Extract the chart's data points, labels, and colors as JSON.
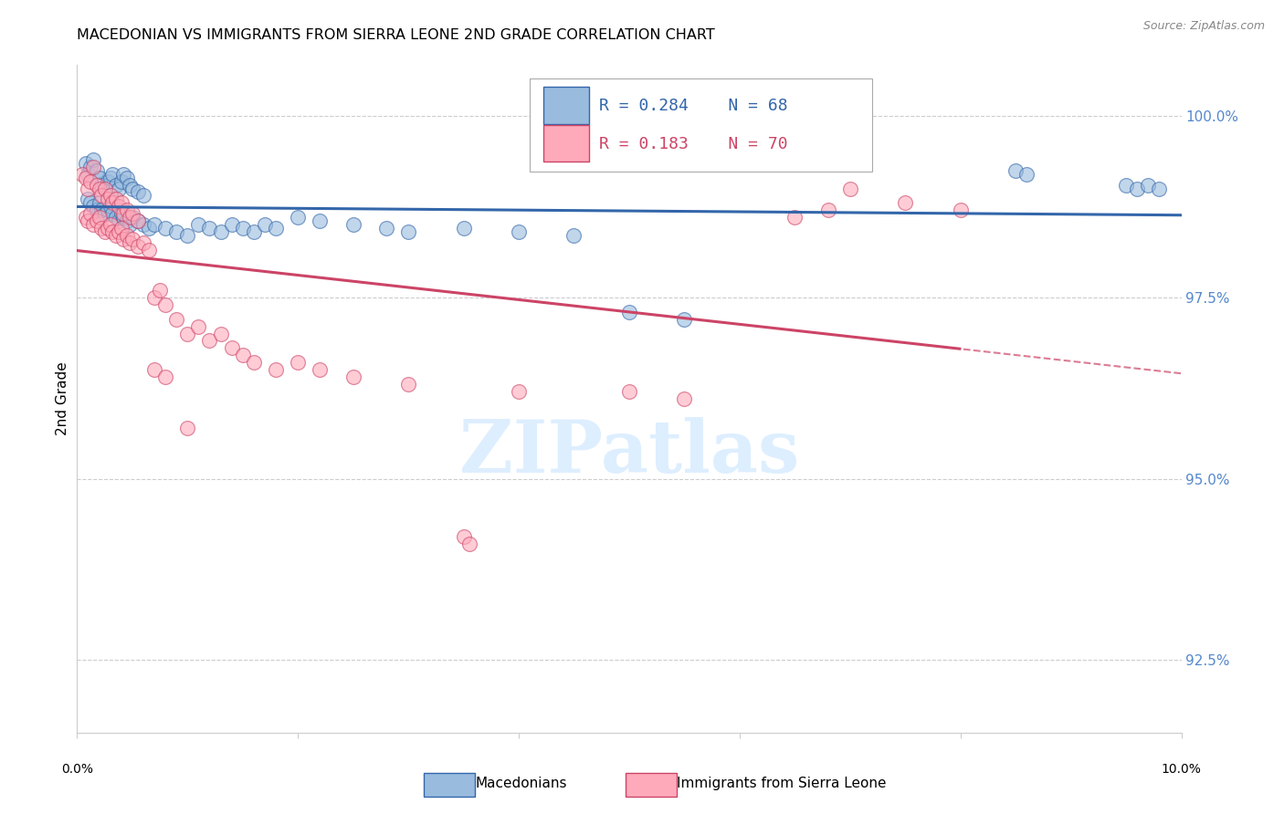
{
  "title": "MACEDONIAN VS IMMIGRANTS FROM SIERRA LEONE 2ND GRADE CORRELATION CHART",
  "source": "Source: ZipAtlas.com",
  "ylabel": "2nd Grade",
  "xlim": [
    0.0,
    10.0
  ],
  "ylim": [
    91.5,
    100.7
  ],
  "yticks": [
    92.5,
    95.0,
    97.5,
    100.0
  ],
  "ytick_labels": [
    "92.5%",
    "95.0%",
    "97.5%",
    "100.0%"
  ],
  "blue_R": 0.284,
  "blue_N": 68,
  "pink_R": 0.183,
  "pink_N": 70,
  "blue_color": "#99bbdd",
  "pink_color": "#ffaabb",
  "blue_line_color": "#3366aa",
  "pink_line_color": "#cc4466",
  "blue_scatter_x": [
    0.08,
    0.1,
    0.12,
    0.15,
    0.18,
    0.2,
    0.22,
    0.25,
    0.28,
    0.3,
    0.32,
    0.35,
    0.38,
    0.4,
    0.42,
    0.45,
    0.48,
    0.5,
    0.55,
    0.6,
    0.1,
    0.12,
    0.15,
    0.18,
    0.2,
    0.22,
    0.25,
    0.28,
    0.3,
    0.32,
    0.35,
    0.38,
    0.4,
    0.42,
    0.45,
    0.48,
    0.5,
    0.55,
    0.6,
    0.65,
    0.7,
    0.8,
    0.9,
    1.0,
    1.1,
    1.2,
    1.3,
    1.4,
    1.5,
    1.6,
    1.7,
    1.8,
    2.0,
    2.2,
    2.5,
    2.8,
    3.0,
    3.5,
    4.0,
    4.5,
    5.0,
    5.5,
    8.5,
    8.6,
    9.5,
    9.6,
    9.7,
    9.8
  ],
  "blue_scatter_y": [
    99.35,
    99.2,
    99.3,
    99.4,
    99.25,
    99.15,
    99.05,
    99.0,
    99.1,
    99.15,
    99.2,
    99.05,
    99.0,
    99.1,
    99.2,
    99.15,
    99.05,
    99.0,
    98.95,
    98.9,
    98.85,
    98.8,
    98.75,
    98.7,
    98.8,
    98.7,
    98.65,
    98.7,
    98.75,
    98.65,
    98.6,
    98.55,
    98.65,
    98.6,
    98.55,
    98.5,
    98.6,
    98.55,
    98.5,
    98.45,
    98.5,
    98.45,
    98.4,
    98.35,
    98.5,
    98.45,
    98.4,
    98.5,
    98.45,
    98.4,
    98.5,
    98.45,
    98.6,
    98.55,
    98.5,
    98.45,
    98.4,
    98.45,
    98.4,
    98.35,
    97.3,
    97.2,
    99.25,
    99.2,
    99.05,
    99.0,
    99.05,
    99.0
  ],
  "pink_scatter_x": [
    0.05,
    0.08,
    0.1,
    0.12,
    0.15,
    0.18,
    0.2,
    0.22,
    0.25,
    0.28,
    0.3,
    0.32,
    0.35,
    0.38,
    0.4,
    0.42,
    0.45,
    0.48,
    0.5,
    0.55,
    0.08,
    0.1,
    0.12,
    0.15,
    0.18,
    0.2,
    0.22,
    0.25,
    0.28,
    0.3,
    0.32,
    0.35,
    0.38,
    0.4,
    0.42,
    0.45,
    0.48,
    0.5,
    0.55,
    0.6,
    0.65,
    0.7,
    0.75,
    0.8,
    0.9,
    1.0,
    1.1,
    1.2,
    1.3,
    1.4,
    1.5,
    1.6,
    1.8,
    2.0,
    2.2,
    2.5,
    3.0,
    3.5,
    3.55,
    4.0,
    5.0,
    5.5,
    6.5,
    6.8,
    7.0,
    7.5,
    8.0,
    0.7,
    0.8,
    1.0
  ],
  "pink_scatter_y": [
    99.2,
    99.15,
    99.0,
    99.1,
    99.3,
    99.05,
    99.0,
    98.9,
    99.0,
    98.85,
    98.9,
    98.8,
    98.85,
    98.75,
    98.8,
    98.65,
    98.7,
    98.6,
    98.65,
    98.55,
    98.6,
    98.55,
    98.65,
    98.5,
    98.55,
    98.6,
    98.45,
    98.4,
    98.45,
    98.5,
    98.4,
    98.35,
    98.4,
    98.45,
    98.3,
    98.35,
    98.25,
    98.3,
    98.2,
    98.25,
    98.15,
    97.5,
    97.6,
    97.4,
    97.2,
    97.0,
    97.1,
    96.9,
    97.0,
    96.8,
    96.7,
    96.6,
    96.5,
    96.6,
    96.5,
    96.4,
    96.3,
    94.2,
    94.1,
    96.2,
    96.2,
    96.1,
    98.6,
    98.7,
    99.0,
    98.8,
    98.7,
    96.5,
    96.4,
    95.7
  ],
  "background_color": "#ffffff",
  "watermark_color": "#ddeeff"
}
